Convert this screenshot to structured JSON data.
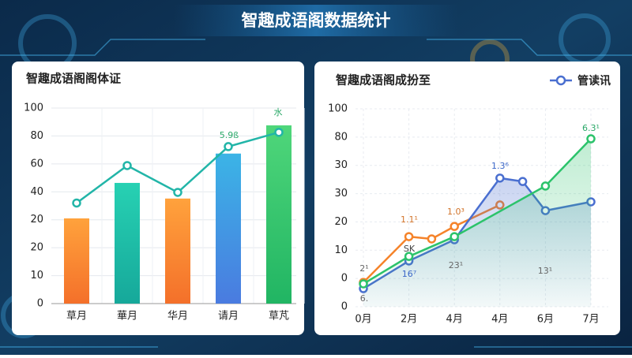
{
  "header": {
    "title": "智趣成语阁数据统计"
  },
  "chart_data": [
    {
      "type": "bar",
      "title": "智趣成语阁阁体证",
      "categories": [
        "草月",
        "華月",
        "华月",
        "请月",
        "草芃"
      ],
      "values": [
        3.05,
        4.32,
        3.76,
        5.37,
        6.38
      ],
      "colors": [
        [
          "#ffa23c",
          "#f4702a"
        ],
        [
          "#27d1b3",
          "#16a89a"
        ],
        [
          "#ffa23c",
          "#f4702a"
        ],
        [
          "#3bb4e6",
          "#4a7be0"
        ],
        [
          "#4fd67a",
          "#21b563"
        ]
      ],
      "line": {
        "values": [
          3.6,
          4.94,
          3.98,
          5.62,
          6.13
        ],
        "color": "#22b5a8"
      },
      "annotations": [
        "5.9ß",
        "水"
      ],
      "ylim": [
        0,
        7
      ],
      "yticks": [
        {
          "value": 0,
          "label": "0"
        },
        {
          "value": 1,
          "label": "10"
        },
        {
          "value": 2,
          "label": "20"
        },
        {
          "value": 3,
          "label": "20"
        },
        {
          "value": 4,
          "label": "40"
        },
        {
          "value": 5,
          "label": "60"
        },
        {
          "value": 6,
          "label": "80"
        },
        {
          "value": 7,
          "label": "100"
        }
      ],
      "grid": true
    },
    {
      "type": "line",
      "title": "智趣成语阁成扮至",
      "xlim": [
        0,
        5
      ],
      "xticks": [
        {
          "value": 0,
          "label": "0月"
        },
        {
          "value": 1,
          "label": "2月"
        },
        {
          "value": 2,
          "label": "4月"
        },
        {
          "value": 3,
          "label": "4月"
        },
        {
          "value": 4,
          "label": "6月"
        },
        {
          "value": 5,
          "label": "7月"
        }
      ],
      "ylim": [
        0,
        7
      ],
      "yticks": [
        {
          "value": 0,
          "label": "0"
        },
        {
          "value": 1,
          "label": "0"
        },
        {
          "value": 2,
          "label": "10"
        },
        {
          "value": 3,
          "label": "20"
        },
        {
          "value": 4,
          "label": "30"
        },
        {
          "value": 5,
          "label": "30"
        },
        {
          "value": 6,
          "label": "80"
        },
        {
          "value": 7,
          "label": "100"
        }
      ],
      "series": [
        {
          "color": "#f5832a",
          "x": [
            0,
            1,
            1.5,
            2,
            3
          ],
          "values": [
            0.86,
            2.48,
            2.4,
            2.84,
            3.6
          ]
        },
        {
          "name": "管读讯",
          "color": "#4a6fd0",
          "area": true,
          "x": [
            0,
            1,
            2,
            3,
            3.5,
            4,
            5
          ],
          "values": [
            0.64,
            1.62,
            2.37,
            4.55,
            4.43,
            3.4,
            3.71
          ]
        },
        {
          "color": "#2cc36b",
          "area": true,
          "x": [
            0,
            1,
            2,
            4,
            5
          ],
          "values": [
            0.81,
            1.78,
            2.48,
            4.27,
            5.94
          ]
        }
      ],
      "annotations": [
        "2¹",
        "1.1¹",
        "1.0³",
        "1.3⁶",
        "6.3¹",
        "SK",
        "16⁷",
        "23¹",
        "13¹",
        "6."
      ],
      "legend": "top-right",
      "grid": true
    }
  ]
}
